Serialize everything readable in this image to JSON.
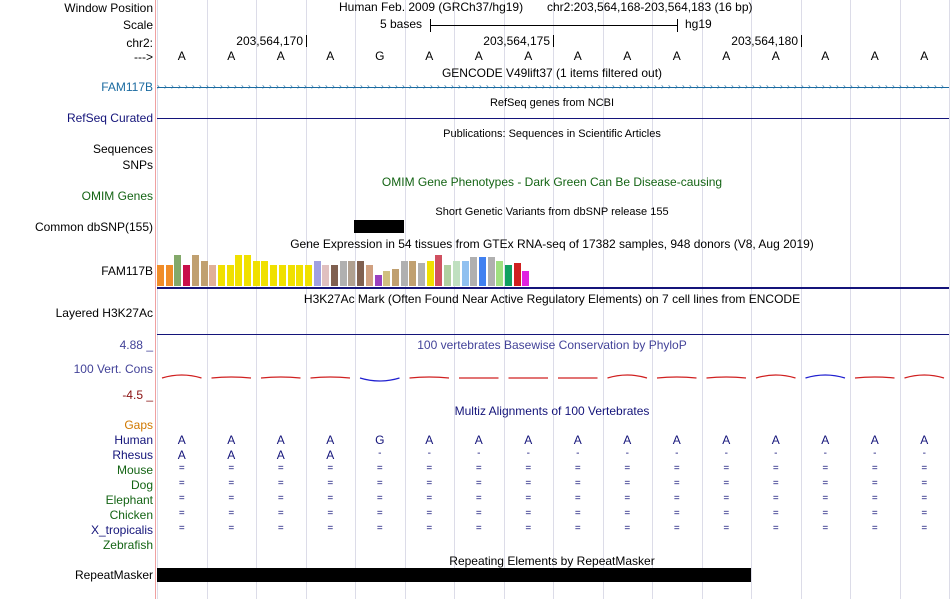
{
  "header": {
    "window_position_label": "Window Position",
    "scale_label": "Scale",
    "chrom_label": "chr2:",
    "strand_label": "--->",
    "assembly": "Human Feb. 2009 (GRCh37/hg19)",
    "position": "chr2:203,564,168-203,564,183 (16 bp)",
    "scale_text": "5 bases",
    "db": "hg19",
    "ruler_ticks": [
      "203,564,170",
      "203,564,175",
      "203,564,180"
    ]
  },
  "bases": [
    "A",
    "A",
    "A",
    "A",
    "G",
    "A",
    "A",
    "A",
    "A",
    "A",
    "A",
    "A",
    "A",
    "A",
    "A",
    "A"
  ],
  "tracks": {
    "gencode": {
      "title": "GENCODE V49lift37 (1 items filtered out)",
      "label": "FAM117B"
    },
    "refseq": {
      "title": "RefSeq genes from NCBI",
      "label": "RefSeq Curated"
    },
    "publications": {
      "title": "Publications: Sequences in Scientific Articles",
      "label_seq": "Sequences",
      "label_snps": "SNPs"
    },
    "omim": {
      "title": "OMIM Gene Phenotypes - Dark Green Can Be Disease-causing",
      "label": "OMIM Genes"
    },
    "dbsnp": {
      "title": "Short Genetic Variants from dbSNP release 155",
      "label": "Common dbSNP(155)"
    },
    "gtex": {
      "title": "Gene Expression in 54 tissues from GTEx RNA-seq of 17382 samples, 948 donors (V8, Aug 2019)",
      "label": "FAM117B"
    },
    "h3k27ac": {
      "title": "H3K27Ac Mark (Often Found Near Active Regulatory Elements) on 7 cell lines from ENCODE",
      "label": "Layered H3K27Ac"
    },
    "cons": {
      "title": "100 vertebrates Basewise Conservation by PhyloP",
      "label": "100 Vert. Cons",
      "max": "4.88 _",
      "min": "-4.5 _"
    },
    "multiz": {
      "title": "Multiz Alignments of 100 Vertebrates",
      "gaps_label": "Gaps",
      "species": [
        {
          "name": "Human",
          "row": [
            "A",
            "A",
            "A",
            "A",
            "G",
            "A",
            "A",
            "A",
            "A",
            "A",
            "A",
            "A",
            "A",
            "A",
            "A",
            "A"
          ]
        },
        {
          "name": "Rhesus",
          "row": [
            "A",
            "A",
            "A",
            "A",
            "-",
            "-",
            "-",
            "-",
            "-",
            "-",
            "-",
            "-",
            "-",
            "-",
            "-",
            "-"
          ]
        },
        {
          "name": "Mouse",
          "row": [
            "=",
            "=",
            "=",
            "=",
            "=",
            "=",
            "=",
            "=",
            "=",
            "=",
            "=",
            "=",
            "=",
            "=",
            "=",
            "="
          ]
        },
        {
          "name": "Dog",
          "row": [
            "=",
            "=",
            "=",
            "=",
            "=",
            "=",
            "=",
            "=",
            "=",
            "=",
            "=",
            "=",
            "=",
            "=",
            "=",
            "="
          ]
        },
        {
          "name": "Elephant",
          "row": [
            "=",
            "=",
            "=",
            "=",
            "=",
            "=",
            "=",
            "=",
            "=",
            "=",
            "=",
            "=",
            "=",
            "=",
            "=",
            "="
          ]
        },
        {
          "name": "Chicken",
          "row": [
            "=",
            "=",
            "=",
            "=",
            "=",
            "=",
            "=",
            "=",
            "=",
            "=",
            "=",
            "=",
            "=",
            "=",
            "=",
            "="
          ]
        },
        {
          "name": "X_tropicalis",
          "row": [
            "=",
            "=",
            "=",
            "=",
            "=",
            "=",
            "=",
            "=",
            "=",
            "=",
            "=",
            "=",
            "=",
            "=",
            "=",
            "="
          ]
        },
        {
          "name": "Zebrafish",
          "row": []
        }
      ]
    },
    "repeatmasker": {
      "title": "Repeating Elements by RepeatMasker",
      "label": "RepeatMasker"
    }
  },
  "colors": {
    "gtex_bars": [
      "#f08c28",
      "#f08c28",
      "#83a96a",
      "#c8104a",
      "#c0a070",
      "#c0a070",
      "#e0b098",
      "#f0e000",
      "#f0e000",
      "#f0e000",
      "#f0e000",
      "#f0e000",
      "#f0e000",
      "#f0e000",
      "#f0e000",
      "#f0e000",
      "#f0e000",
      "#f0e000",
      "#a0a0e0",
      "#e0c0c0",
      "#806050",
      "#b0b0b0",
      "#b0a090",
      "#806050",
      "#d0a080",
      "#9a40c0",
      "#d0c080",
      "#c0a070",
      "#b0b0b0",
      "#c0a070",
      "#b0b0b0",
      "#f0e000",
      "#d05060",
      "#b0d0a0",
      "#c0e0c0",
      "#90c0f0",
      "#b0b0b0",
      "#4080f0",
      "#b0b0b0",
      "#a0e080",
      "#10a060",
      "#d02020",
      "#e020e0"
    ]
  }
}
